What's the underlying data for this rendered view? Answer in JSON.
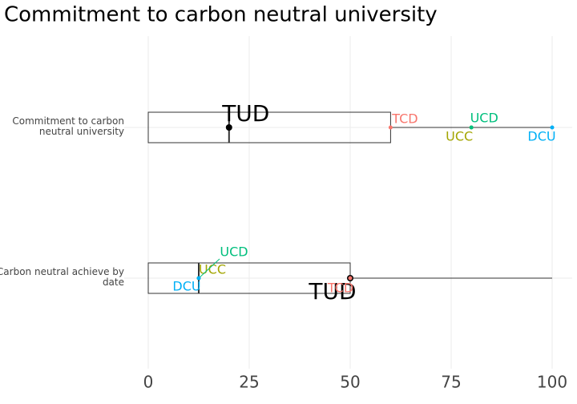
{
  "chart_data": {
    "type": "box",
    "title": "Commitment to carbon neutral university",
    "categories": [
      "Commitment to carbon neutral university",
      "Carbon neutral achieve by date"
    ],
    "boxes": [
      {
        "low": 0,
        "q1": 0,
        "median": 20,
        "q3": 60,
        "high": 100
      },
      {
        "low": 0,
        "q1": 0,
        "median": 12.5,
        "q3": 50,
        "high": 100
      }
    ],
    "series": [
      {
        "name": "TUD",
        "color": "#000000",
        "values": [
          20,
          50
        ]
      },
      {
        "name": "TCD",
        "color": "#f8766d",
        "values": [
          60,
          50
        ]
      },
      {
        "name": "UCC",
        "color": "#a3a500",
        "values": [
          80,
          12.5
        ]
      },
      {
        "name": "UCD",
        "color": "#00bf7d",
        "values": [
          80,
          12.5
        ]
      },
      {
        "name": "DCU",
        "color": "#00b0f6",
        "values": [
          100,
          12.5
        ]
      }
    ],
    "xlim": [
      0,
      100
    ],
    "xticks": [
      0,
      25,
      50,
      75,
      100
    ],
    "grid": true
  }
}
